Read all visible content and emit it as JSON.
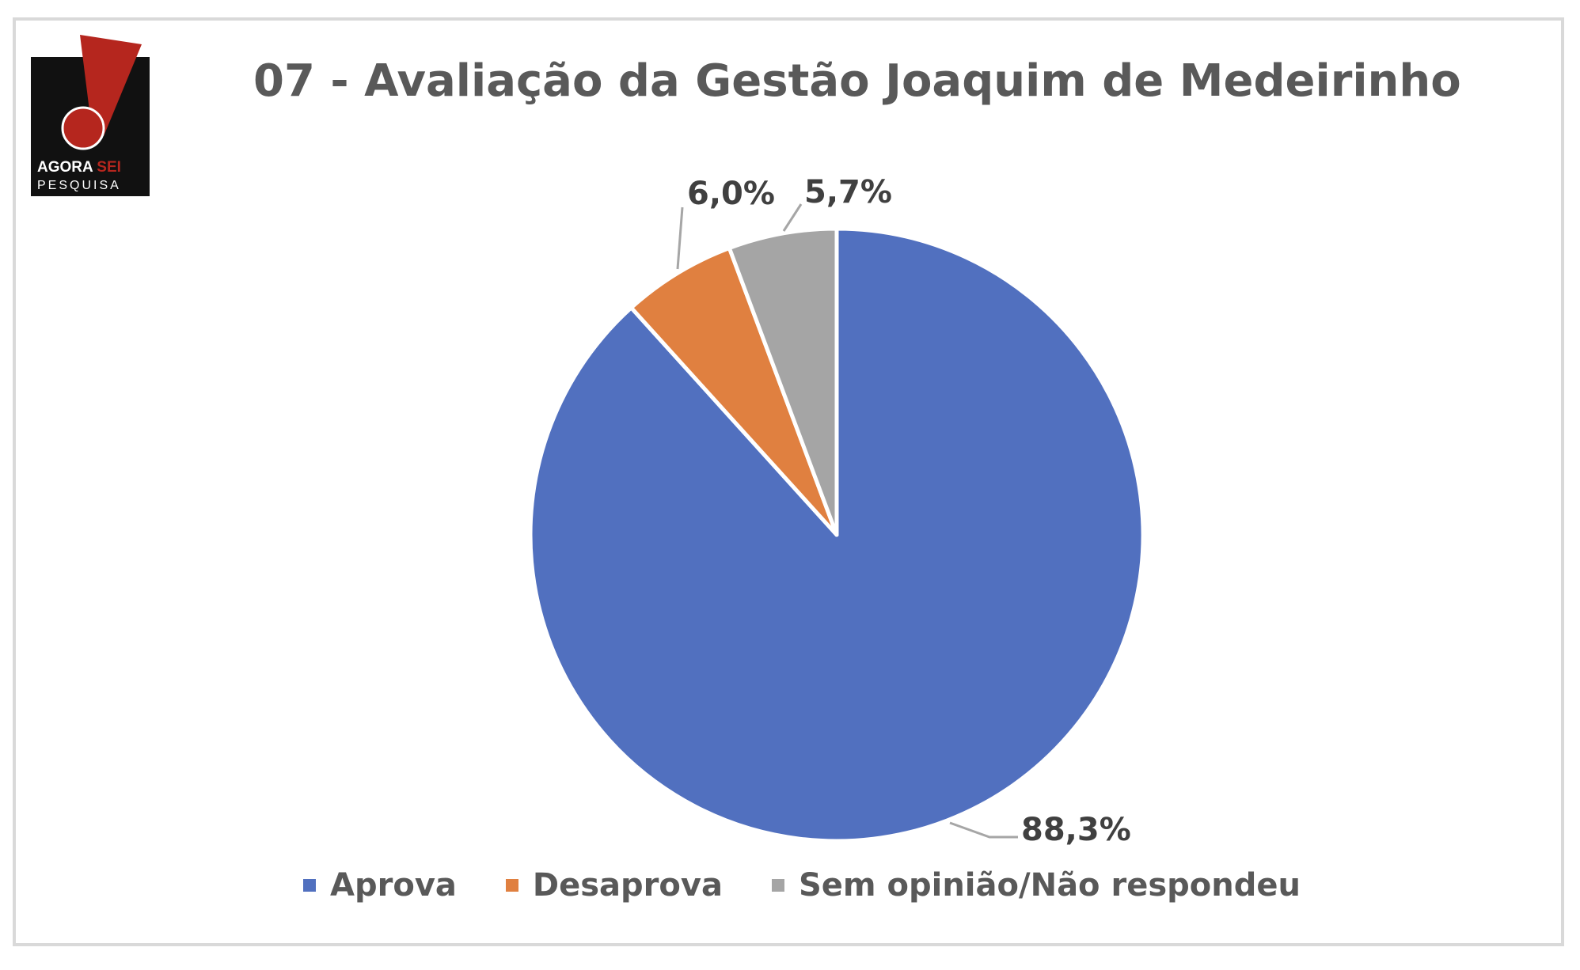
{
  "chart_data": {
    "type": "pie",
    "title": "07 - Avaliação  da Gestão Joaquim  de Medeirinho",
    "categories": [
      "Aprova",
      "Desaprova",
      "Sem opinião/Não respondeu"
    ],
    "values": [
      88.3,
      6.0,
      5.7
    ],
    "value_labels": [
      "88,3%",
      "6,0%",
      "5,7%"
    ],
    "colors": [
      "#5170bf",
      "#e08040",
      "#a5a5a5"
    ],
    "legend_position": "bottom",
    "start_angle": "12 o'clock",
    "direction": "clockwise"
  },
  "logo": {
    "line1": "AGORA",
    "line1_accent": "SEI",
    "line2": "PESQUISA",
    "colors": {
      "background": "#111111",
      "mark": "#b5261e",
      "text": "#ffffff"
    }
  }
}
